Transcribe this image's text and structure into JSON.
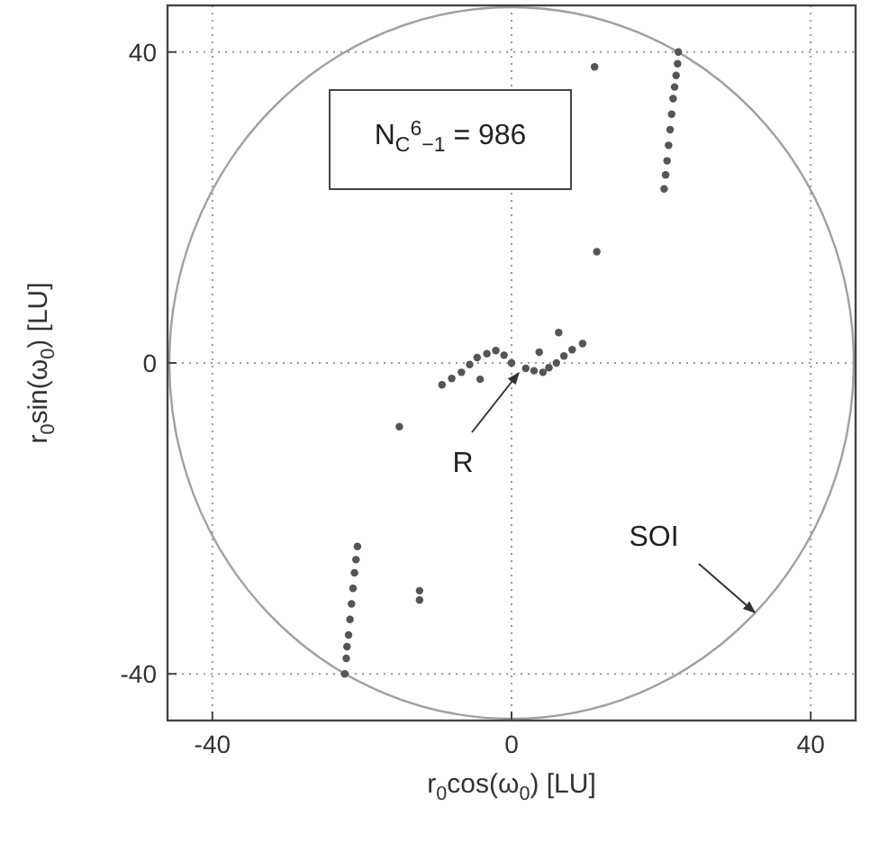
{
  "chart_data": {
    "type": "scatter",
    "xlabel": "r$_{0}$cos(ω$_{0}$) [LU]",
    "ylabel": "r$_{0}$sin(ω$_{0}$) [LU]",
    "xlim": [
      -46,
      46
    ],
    "ylim": [
      -46,
      46
    ],
    "xticks": [
      -40,
      0,
      40
    ],
    "yticks": [
      -40,
      0,
      40
    ],
    "grid": true,
    "marker": "circle",
    "series": [
      {
        "color": "#555555",
        "x": [
          20.4,
          20.6,
          20.8,
          21,
          21.2,
          21.4,
          21.6,
          21.8,
          22,
          22.2,
          22.3,
          -20.6,
          -20.8,
          -21,
          -21.2,
          -21.4,
          -21.6,
          -21.8,
          -22,
          -22.1,
          -22.3,
          11.1,
          11.4,
          6.3,
          -15,
          -12.3,
          -12.3,
          -9.3,
          -8,
          -6.7,
          -5.6,
          -4.6,
          -3.3,
          -2.1,
          -1,
          0,
          1.9,
          3,
          4.2,
          5,
          6,
          7,
          8.1,
          9.5,
          -4.2,
          3.7
        ],
        "values": [
          22.4,
          24.2,
          26,
          28,
          30,
          32,
          34,
          35.5,
          37,
          38.5,
          40,
          -23.6,
          -25.3,
          -27,
          -29,
          -31,
          -33,
          -35,
          -36.5,
          -38,
          -40,
          38.1,
          14.3,
          3.9,
          -8.2,
          -29.3,
          -30.5,
          -2.8,
          -2,
          -1.2,
          -0.2,
          0.7,
          1.2,
          1.6,
          1,
          0,
          -0.7,
          -1,
          -1.2,
          -0.6,
          0,
          0.9,
          1.7,
          2.5,
          -2.1,
          1.4
        ]
      }
    ],
    "annotations": [
      "N$_{C}$$^{6}$$_{−1}$ = 986",
      "R",
      "SOI"
    ]
  }
}
